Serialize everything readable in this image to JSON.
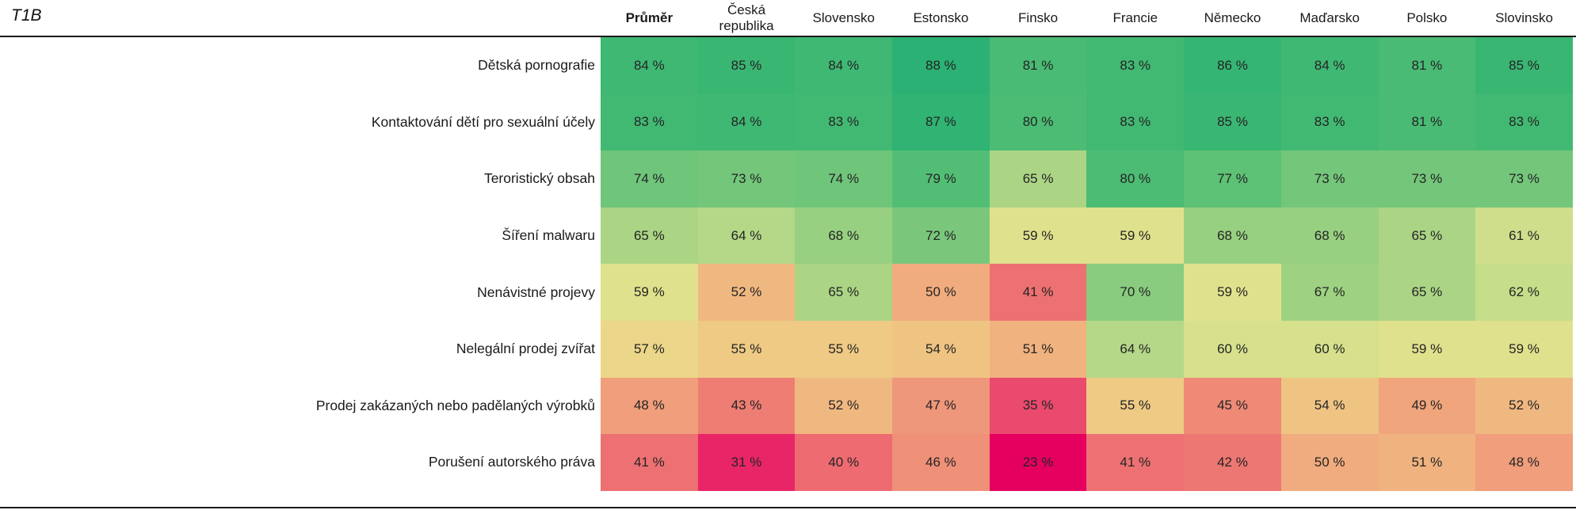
{
  "tag": "T1B",
  "chart_data": {
    "type": "heatmap",
    "title": "T1B",
    "value_suffix": " %",
    "columns": [
      "Průměr",
      "Česká republika",
      "Slovensko",
      "Estonsko",
      "Finsko",
      "Francie",
      "Německo",
      "Maďarsko",
      "Polsko",
      "Slovinsko"
    ],
    "rows": [
      "Dětská pornografie",
      "Kontaktování dětí pro sexuální účely",
      "Teroristický obsah",
      "Šíření malwaru",
      "Nenávistné projevy",
      "Nelegální prodej zvířat",
      "Prodej zakázaných nebo padělaných výrobků",
      "Porušení autorského práva"
    ],
    "values": [
      [
        84,
        85,
        84,
        88,
        81,
        83,
        86,
        84,
        81,
        85
      ],
      [
        83,
        84,
        83,
        87,
        80,
        83,
        85,
        83,
        81,
        83
      ],
      [
        74,
        73,
        74,
        79,
        65,
        80,
        77,
        73,
        73,
        73
      ],
      [
        65,
        64,
        68,
        72,
        59,
        59,
        68,
        68,
        65,
        61
      ],
      [
        59,
        52,
        65,
        50,
        41,
        70,
        59,
        67,
        65,
        62
      ],
      [
        57,
        55,
        55,
        54,
        51,
        64,
        60,
        60,
        59,
        59
      ],
      [
        48,
        43,
        52,
        47,
        35,
        55,
        45,
        54,
        49,
        52
      ],
      [
        41,
        31,
        40,
        46,
        23,
        41,
        42,
        50,
        51,
        48
      ]
    ],
    "value_range": [
      23,
      88
    ],
    "colorscale": [
      {
        "v": 23,
        "c": "#e50060"
      },
      {
        "v": 31,
        "c": "#e82567"
      },
      {
        "v": 35,
        "c": "#ea4a6e"
      },
      {
        "v": 41,
        "c": "#ed7172"
      },
      {
        "v": 46,
        "c": "#ef9078"
      },
      {
        "v": 50,
        "c": "#f0ac7e"
      },
      {
        "v": 54,
        "c": "#efc483"
      },
      {
        "v": 57,
        "c": "#ecd689"
      },
      {
        "v": 59,
        "c": "#e0e18d"
      },
      {
        "v": 62,
        "c": "#c6dd8a"
      },
      {
        "v": 65,
        "c": "#abd585"
      },
      {
        "v": 68,
        "c": "#98d081"
      },
      {
        "v": 72,
        "c": "#7ac77c"
      },
      {
        "v": 76,
        "c": "#63c277"
      },
      {
        "v": 80,
        "c": "#4cbc74"
      },
      {
        "v": 84,
        "c": "#3fb873"
      },
      {
        "v": 88,
        "c": "#2bb173"
      }
    ],
    "text_color": "#242424",
    "rule_color": "#1a1a1a"
  }
}
